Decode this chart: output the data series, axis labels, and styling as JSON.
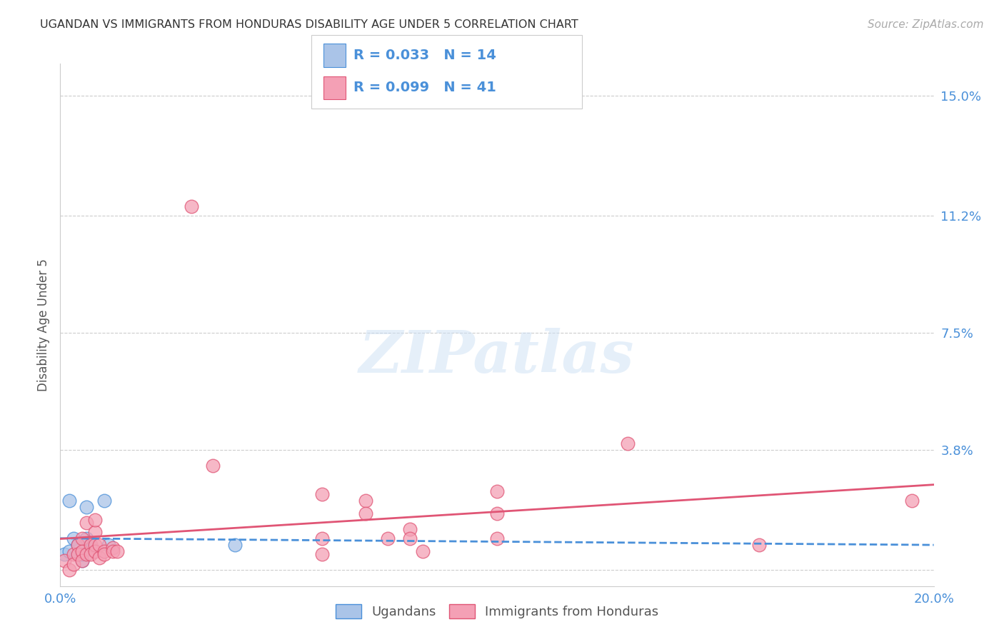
{
  "title": "UGANDAN VS IMMIGRANTS FROM HONDURAS DISABILITY AGE UNDER 5 CORRELATION CHART",
  "source": "Source: ZipAtlas.com",
  "ylabel": "Disability Age Under 5",
  "watermark": "ZIPatlas",
  "xlim": [
    0.0,
    0.2
  ],
  "ylim": [
    -0.005,
    0.16
  ],
  "yticks": [
    0.0,
    0.038,
    0.075,
    0.112,
    0.15
  ],
  "ytick_labels": [
    "",
    "3.8%",
    "7.5%",
    "11.2%",
    "15.0%"
  ],
  "xticks": [
    0.0,
    0.05,
    0.1,
    0.15,
    0.2
  ],
  "xtick_labels": [
    "0.0%",
    "",
    "",
    "",
    "20.0%"
  ],
  "grid_color": "#cccccc",
  "background_color": "#ffffff",
  "legend_r1": "R = 0.033",
  "legend_n1": "N = 14",
  "legend_r2": "R = 0.099",
  "legend_n2": "N = 41",
  "ugandan_color": "#aac4e8",
  "honduras_color": "#f4a0b5",
  "ugandan_line_color": "#4a90d9",
  "honduras_line_color": "#e05575",
  "title_color": "#333333",
  "axis_label_color": "#555555",
  "tick_color": "#4a90d9",
  "source_color": "#aaaaaa",
  "ugandan_points": [
    [
      0.001,
      0.005
    ],
    [
      0.002,
      0.006
    ],
    [
      0.002,
      0.022
    ],
    [
      0.003,
      0.01
    ],
    [
      0.004,
      0.008
    ],
    [
      0.004,
      0.005
    ],
    [
      0.005,
      0.003
    ],
    [
      0.005,
      0.005
    ],
    [
      0.006,
      0.02
    ],
    [
      0.006,
      0.01
    ],
    [
      0.007,
      0.008
    ],
    [
      0.01,
      0.022
    ],
    [
      0.011,
      0.008
    ],
    [
      0.04,
      0.008
    ]
  ],
  "honduras_points": [
    [
      0.001,
      0.003
    ],
    [
      0.002,
      0.0
    ],
    [
      0.003,
      0.005
    ],
    [
      0.003,
      0.002
    ],
    [
      0.004,
      0.008
    ],
    [
      0.004,
      0.005
    ],
    [
      0.005,
      0.01
    ],
    [
      0.005,
      0.006
    ],
    [
      0.005,
      0.003
    ],
    [
      0.006,
      0.015
    ],
    [
      0.006,
      0.005
    ],
    [
      0.007,
      0.008
    ],
    [
      0.007,
      0.005
    ],
    [
      0.008,
      0.012
    ],
    [
      0.008,
      0.008
    ],
    [
      0.008,
      0.006
    ],
    [
      0.008,
      0.016
    ],
    [
      0.009,
      0.004
    ],
    [
      0.009,
      0.008
    ],
    [
      0.01,
      0.006
    ],
    [
      0.01,
      0.005
    ],
    [
      0.012,
      0.007
    ],
    [
      0.012,
      0.006
    ],
    [
      0.013,
      0.006
    ],
    [
      0.035,
      0.033
    ],
    [
      0.03,
      0.115
    ],
    [
      0.06,
      0.024
    ],
    [
      0.06,
      0.01
    ],
    [
      0.06,
      0.005
    ],
    [
      0.07,
      0.022
    ],
    [
      0.07,
      0.018
    ],
    [
      0.075,
      0.01
    ],
    [
      0.08,
      0.013
    ],
    [
      0.08,
      0.01
    ],
    [
      0.083,
      0.006
    ],
    [
      0.1,
      0.025
    ],
    [
      0.1,
      0.018
    ],
    [
      0.1,
      0.01
    ],
    [
      0.13,
      0.04
    ],
    [
      0.16,
      0.008
    ],
    [
      0.195,
      0.022
    ]
  ]
}
